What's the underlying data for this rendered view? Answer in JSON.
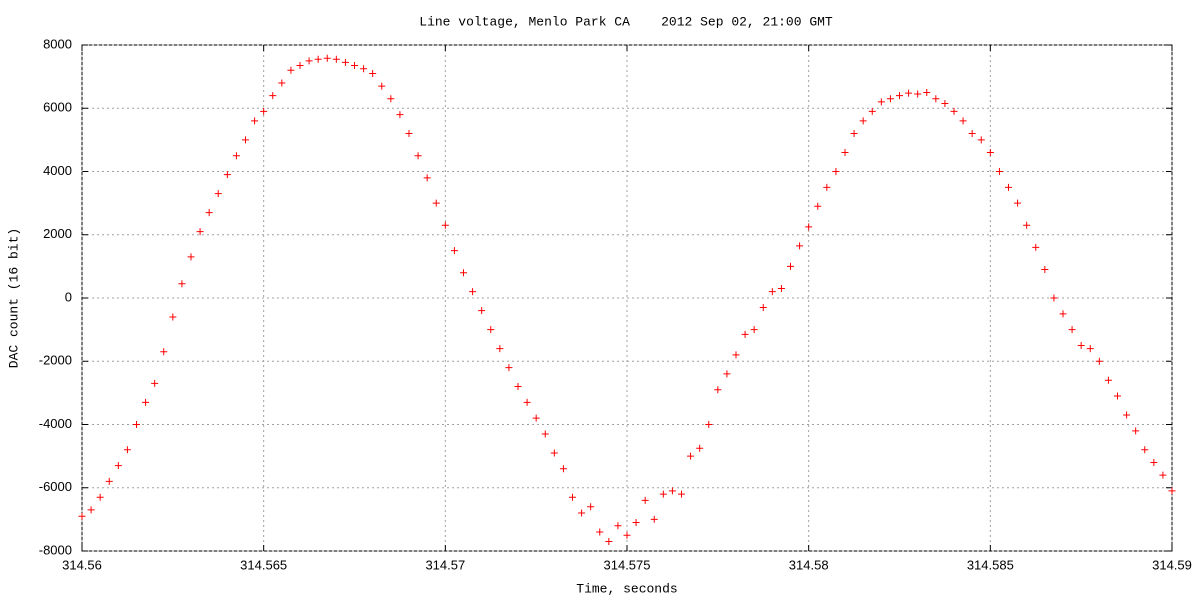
{
  "chart_data": {
    "type": "scatter",
    "title": "Line voltage, Menlo Park CA    2012 Sep 02, 21:00 GMT",
    "x_label": "Time, seconds",
    "y_label": "DAC count (16 bit)",
    "color": "#ff0000",
    "grid": true,
    "xlim": [
      314.56,
      314.59
    ],
    "xticks": [
      314.56,
      314.565,
      314.57,
      314.575,
      314.58,
      314.585,
      314.59
    ],
    "ylim": [
      -8000,
      8000
    ],
    "yticks": [
      -8000,
      -6000,
      -4000,
      -2000,
      0,
      2000,
      4000,
      6000,
      8000
    ],
    "x": [
      314.56,
      314.56025,
      314.5605,
      314.56075,
      314.561,
      314.56125,
      314.5615,
      314.56175,
      314.562,
      314.56225,
      314.5625,
      314.56275,
      314.563,
      314.56325,
      314.5635,
      314.56375,
      314.564,
      314.56425,
      314.5645,
      314.56475,
      314.565,
      314.56525,
      314.5655,
      314.56575,
      314.566,
      314.56625,
      314.5665,
      314.56675,
      314.567,
      314.56725,
      314.5675,
      314.56775,
      314.568,
      314.56825,
      314.5685,
      314.56875,
      314.569,
      314.56925,
      314.5695,
      314.56975,
      314.57,
      314.57025,
      314.5705,
      314.57075,
      314.571,
      314.57125,
      314.5715,
      314.57175,
      314.572,
      314.57225,
      314.5725,
      314.57275,
      314.573,
      314.57325,
      314.5735,
      314.57375,
      314.574,
      314.57425,
      314.5745,
      314.57475,
      314.575,
      314.57525,
      314.5755,
      314.57575,
      314.576,
      314.57625,
      314.5765,
      314.57675,
      314.577,
      314.57725,
      314.5775,
      314.57775,
      314.578,
      314.57825,
      314.5785,
      314.57875,
      314.579,
      314.57925,
      314.5795,
      314.57975,
      314.58,
      314.58025,
      314.5805,
      314.58075,
      314.581,
      314.58125,
      314.5815,
      314.58175,
      314.582,
      314.58225,
      314.5825,
      314.58275,
      314.583,
      314.58325,
      314.5835,
      314.58375,
      314.584,
      314.58425,
      314.5845,
      314.58475,
      314.585,
      314.58525,
      314.5855,
      314.58575,
      314.586,
      314.58625,
      314.5865,
      314.58675,
      314.587,
      314.58725,
      314.5875,
      314.58775,
      314.588,
      314.58825,
      314.5885,
      314.58875,
      314.589,
      314.58925,
      314.5895,
      314.58975,
      314.59
    ],
    "values": [
      -6900,
      -6700,
      -6300,
      -5800,
      -5300,
      -4800,
      -4000,
      -3300,
      -2700,
      -1700,
      -600,
      450,
      1300,
      2100,
      2700,
      3300,
      3900,
      4500,
      5000,
      5600,
      5900,
      6400,
      6800,
      7200,
      7350,
      7500,
      7550,
      7580,
      7550,
      7450,
      7350,
      7250,
      7100,
      6700,
      6300,
      5800,
      5200,
      4500,
      3800,
      3000,
      2300,
      1500,
      800,
      200,
      -400,
      -1000,
      -1600,
      -2200,
      -2800,
      -3300,
      -3800,
      -4300,
      -4900,
      -5400,
      -6300,
      -6800,
      -6600,
      -7400,
      -7700,
      -7200,
      -7500,
      -7100,
      -6400,
      -7000,
      -6200,
      -6100,
      -6200,
      -5000,
      -4750,
      -4000,
      -2900,
      -2400,
      -1800,
      -1150,
      -1000,
      -300,
      200,
      300,
      1000,
      1650,
      2250,
      2900,
      3500,
      4000,
      4600,
      5200,
      5600,
      5900,
      6200,
      6300,
      6400,
      6480,
      6450,
      6500,
      6300,
      6150,
      5900,
      5600,
      5200,
      5000,
      4600,
      4000,
      3500,
      3000,
      2300,
      1600,
      900,
      0,
      -500,
      -1000,
      -1500,
      -1600,
      -2000,
      -2600,
      -3100,
      -3700,
      -4200,
      -4800,
      -5200,
      -5600,
      -6100
    ]
  }
}
